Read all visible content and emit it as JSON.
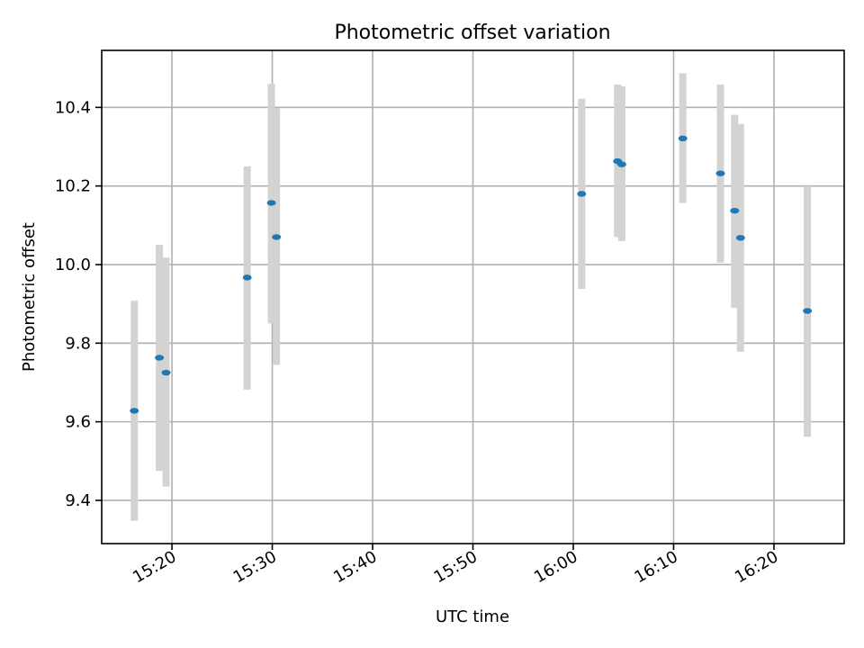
{
  "chart_data": {
    "type": "scatter",
    "title": "Photometric offset variation",
    "xlabel": "UTC time",
    "ylabel": "Photometric offset",
    "x_ticks": [
      "15:20",
      "15:30",
      "15:40",
      "15:50",
      "16:00",
      "16:10",
      "16:20"
    ],
    "y_ticks": [
      "9.4",
      "9.6",
      "9.8",
      "10.0",
      "10.2",
      "10.4"
    ],
    "xlim": [
      "15:13",
      "16:27"
    ],
    "ylim": [
      9.29,
      10.545
    ],
    "grid": true,
    "colors": {
      "point": "#1f77b4",
      "errorbar": "#d3d3d3",
      "grid": "#b0b0b0"
    },
    "points": [
      {
        "x": "15:16:15",
        "y": 9.628,
        "err_low": 9.348,
        "err_high": 9.908
      },
      {
        "x": "15:18:45",
        "y": 9.763,
        "err_low": 9.475,
        "err_high": 10.05
      },
      {
        "x": "15:19:25",
        "y": 9.725,
        "err_low": 9.435,
        "err_high": 10.018
      },
      {
        "x": "15:27:30",
        "y": 9.967,
        "err_low": 9.682,
        "err_high": 10.25
      },
      {
        "x": "15:29:55",
        "y": 10.157,
        "err_low": 9.85,
        "err_high": 10.46
      },
      {
        "x": "15:30:25",
        "y": 10.07,
        "err_low": 9.745,
        "err_high": 10.398
      },
      {
        "x": "16:00:50",
        "y": 10.18,
        "err_low": 9.938,
        "err_high": 10.422
      },
      {
        "x": "16:04:25",
        "y": 10.263,
        "err_low": 10.07,
        "err_high": 10.458
      },
      {
        "x": "16:04:50",
        "y": 10.255,
        "err_low": 10.06,
        "err_high": 10.453
      },
      {
        "x": "16:10:55",
        "y": 10.321,
        "err_low": 10.157,
        "err_high": 10.487
      },
      {
        "x": "16:14:40",
        "y": 10.232,
        "err_low": 10.005,
        "err_high": 10.458
      },
      {
        "x": "16:16:05",
        "y": 10.137,
        "err_low": 9.89,
        "err_high": 10.381
      },
      {
        "x": "16:16:40",
        "y": 10.068,
        "err_low": 9.778,
        "err_high": 10.358
      },
      {
        "x": "16:23:20",
        "y": 9.882,
        "err_low": 9.562,
        "err_high": 10.2
      }
    ]
  }
}
